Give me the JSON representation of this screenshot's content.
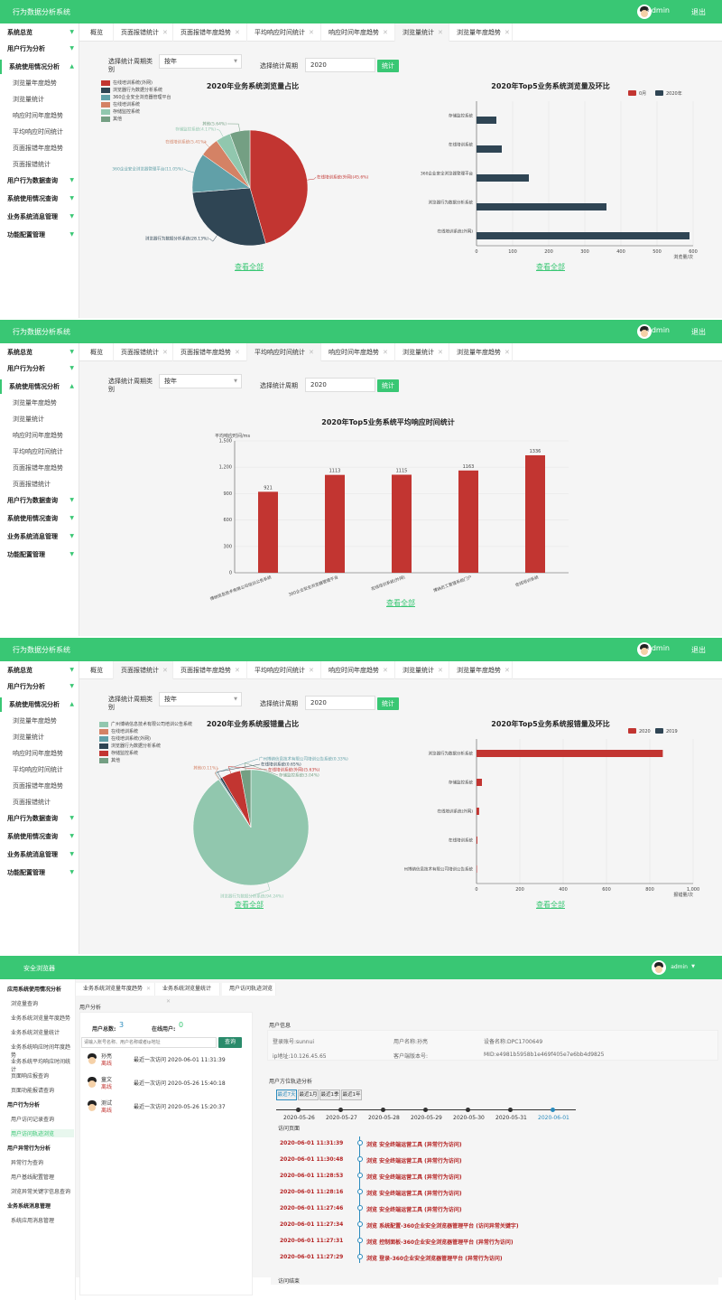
{
  "app_title": "行为数据分析系统",
  "user": "admin",
  "logout": "退出",
  "sidebar": {
    "top": [
      {
        "label": "系统总览"
      },
      {
        "label": "用户行为分析"
      },
      {
        "label": "系统使用情况分析"
      }
    ],
    "subs": [
      "浏览量年度趋势",
      "浏览量统计",
      "响应时间年度趋势",
      "平均响应时间统计",
      "页面报错年度趋势",
      "页面报错统计"
    ],
    "bottom": [
      {
        "label": "用户行为数据查询"
      },
      {
        "label": "系统使用情况查询"
      },
      {
        "label": "业务系统消息管理"
      },
      {
        "label": "功能配置管理"
      }
    ]
  },
  "tabs": [
    "概览",
    "页面报错统计",
    "页面报错年度趋势",
    "平均响应时间统计",
    "响应时间年度趋势",
    "浏览量统计",
    "浏览量年度趋势"
  ],
  "filters": {
    "period_type_label": "选择统计周期类别",
    "period_type_value": "按年",
    "period_label": "选择统计周期",
    "period_value": "2020",
    "submit": "统计"
  },
  "view_all": "查看全部",
  "panel1": {
    "pie_title": "2020年业务系统浏览量占比",
    "bar_title": "2020年Top5业务系统浏览量及环比",
    "pie_legend": [
      "在线培训系统(外网)",
      "浏览器行为数据分析系统",
      "360企业安全浏览器管理平台",
      "在线培训系统",
      "存储监控系统",
      "其他"
    ],
    "pie_colors": [
      "#c23531",
      "#2f4554",
      "#61a0a8",
      "#d48265",
      "#91c7ae",
      "#749f83"
    ],
    "pie_labels": [
      "在线培训系统(外网)(45.6%)",
      "浏览器行为数据分析系统(28.13%)",
      "360企业安全浏览器管理平台(11.05%)",
      "在线培训系统(5.41%)",
      "存储监控系统(4.17%)",
      "其他(5.64%)"
    ],
    "bar_legend": [
      "0月",
      "2020年"
    ],
    "bar_colors": [
      "#c23531",
      "#2f4554"
    ],
    "bar_axis_unit": "浏览量/次"
  },
  "panel2": {
    "title": "2020年Top5业务系统平均响应时间统计",
    "y_unit": "平均响应时间/ms"
  },
  "panel3": {
    "pie_title": "2020年业务系统报错量占比",
    "bar_title": "2020年Top5业务系统报错量及环比",
    "pie_legend": [
      "广州博纳信息技术有限公司培训公告系统",
      "在线培训系统",
      "在线培训系统(外网)",
      "浏览器行为数据分析系统",
      "存储监控系统",
      "其他"
    ],
    "pie_colors": [
      "#91c7ae",
      "#d48265",
      "#61a0a8",
      "#2f4554",
      "#c23531",
      "#749f83"
    ],
    "pie_labels": [
      "浏览器行为数据分析系统(94.24%)",
      "其他(0.11%)",
      "广州博纳信息技术有限公司培训公告系统(0.33%)",
      "在线培训系统(0.65%)",
      "在线培训系统(外网)(5.63%)",
      "存储监控系统(3.04%)"
    ],
    "bar_legend": [
      "2020",
      "2019"
    ],
    "bar_axis_unit": "报错量/次"
  },
  "chart_data": [
    {
      "type": "pie",
      "title": "2020年业务系统浏览量占比",
      "categories": [
        "在线培训系统(外网)",
        "浏览器行为数据分析系统",
        "360企业安全浏览器管理平台",
        "在线培训系统",
        "存储监控系统",
        "其他"
      ],
      "values": [
        45.6,
        28.13,
        11.05,
        5.41,
        4.17,
        5.64
      ]
    },
    {
      "type": "bar",
      "title": "2020年Top5业务系统浏览量及环比",
      "orientation": "horizontal",
      "categories": [
        "存储监控系统",
        "在线培训系统",
        "360企业安全浏览器管理平台",
        "浏览器行为数据分析系统",
        "在线培训系统(外网)"
      ],
      "series": [
        {
          "name": "0月",
          "values": [
            0,
            0,
            0,
            0,
            0
          ]
        },
        {
          "name": "2020年",
          "values": [
            55,
            70,
            145,
            360,
            590
          ]
        }
      ],
      "xlim": [
        0,
        600
      ],
      "xticks": [
        "0",
        "100",
        "200",
        "300",
        "400",
        "500",
        "600"
      ],
      "xlabel": "浏览量/次",
      "legend": "top-right"
    },
    {
      "type": "bar",
      "title": "2020年Top5业务系统平均响应时间统计",
      "categories": [
        "博纳信息技术有限公司培训公告系统",
        "360企业安全浏览器管理平台",
        "在线培训系统(外网)",
        "博纳员工管理系统门户",
        "在线培训系统"
      ],
      "values": [
        921,
        1113,
        1115,
        1163,
        1336
      ],
      "ylim": [
        0,
        1500
      ],
      "yticks": [
        "0",
        "300",
        "600",
        "900",
        "1,200",
        "1,500"
      ],
      "ylabel": "平均响应时间/ms"
    },
    {
      "type": "pie",
      "title": "2020年业务系统报错量占比",
      "categories": [
        "浏览器行为数据分析系统",
        "其他",
        "广州博纳信息技术有限公司培训公告系统",
        "在线培训系统",
        "在线培训系统(外网)",
        "存储监控系统"
      ],
      "values": [
        94.24,
        0.11,
        0.33,
        0.65,
        5.63,
        3.04
      ]
    },
    {
      "type": "bar",
      "title": "2020年Top5业务系统报错量及环比",
      "orientation": "horizontal",
      "categories": [
        "浏览器行为数据分析系统",
        "存储监控系统",
        "在线培训系统(外网)",
        "在线培训系统",
        "广州博纳信息技术有限公司培训公告系统"
      ],
      "series": [
        {
          "name": "2020",
          "values": [
            860,
            25,
            12,
            4,
            2
          ]
        },
        {
          "name": "2019",
          "values": [
            0,
            0,
            0,
            0,
            0
          ]
        }
      ],
      "xlim": [
        0,
        1000
      ],
      "xticks": [
        "0",
        "200",
        "400",
        "600",
        "800",
        "1,000"
      ],
      "xlabel": "报错量/次",
      "legend": "top-right"
    }
  ],
  "panel4": {
    "title": "安全浏览器",
    "user": "admin",
    "sidebar": [
      {
        "group": "应用系统使用情况分析",
        "items": [
          "浏览量查询",
          "业务系统浏览量年度趋势",
          "业务系统浏览量统计",
          "业务系统响应时间年度趋势",
          "业务系统平均响应时间统计",
          "页面响应报查询",
          "页面功能报请查询"
        ]
      },
      {
        "group": "用户行为分析",
        "items": [
          "用户访问记录查询",
          "用户访问轨迹浏览"
        ]
      },
      {
        "group": "用户异常行为分析",
        "items": [
          "异常行为查询",
          "用户基线配置管理",
          "浏览异常关键字信息查询"
        ]
      },
      {
        "group": "业务系统消息管理",
        "items": [
          "系统应用消息管理"
        ]
      }
    ],
    "tabs": [
      "业务系统浏览量年度趋势",
      "业务系统浏览量统计",
      "用户访问轨迹浏览"
    ],
    "section": "用户分析",
    "total_users_label": "用户总数:",
    "total_users": "3",
    "online_label": "在线用户:",
    "online": "0",
    "search_placeholder": "请输入账号名称、用户名称或者ip地址",
    "search_btn": "查询",
    "users": [
      {
        "name": "孙亮",
        "status": "离线",
        "last": "最近一次访问 2020-06-01 11:31:39"
      },
      {
        "name": "童文",
        "status": "离线",
        "last": "最近一次访问 2020-05-26 15:40:18"
      },
      {
        "name": "测试",
        "status": "离线",
        "last": "最近一次访问 2020-05-26 15:20:37"
      }
    ],
    "info_title": "用户信息",
    "info": {
      "account": "登录账号:sunnui",
      "name": "用户名称:孙亮",
      "device": "设备名称:DPC1700649",
      "ip": "ip地址:10.126.45.65",
      "client": "客户端版本号:",
      "mid": "MID:e4981b5958b1e469f405e7e6bb4d9825"
    },
    "track_title": "用户方位轨迹分析",
    "ranges": [
      "最近7天",
      "最近1月",
      "最近1季",
      "最近1年"
    ],
    "dates": [
      "2020-05-26",
      "2020-05-27",
      "2020-05-28",
      "2020-05-29",
      "2020-05-30",
      "2020-05-31",
      "2020-06-01"
    ],
    "visit_title": "访问页面",
    "visits": [
      {
        "time": "2020-06-01 11:31:39",
        "text": "浏览 安全终端运营工具 (异常行为访问)"
      },
      {
        "time": "2020-06-01 11:30:48",
        "text": "浏览 安全终端运营工具 (异常行为访问)"
      },
      {
        "time": "2020-06-01 11:28:53",
        "text": "浏览 安全终端运营工具 (异常行为访问)"
      },
      {
        "time": "2020-06-01 11:28:16",
        "text": "浏览 安全终端运营工具 (异常行为访问)"
      },
      {
        "time": "2020-06-01 11:27:46",
        "text": "浏览 安全终端运营工具 (异常行为访问)"
      },
      {
        "time": "2020-06-01 11:27:34",
        "text": "浏览 系统配置-360企业安全浏览器管理平台 (访问异常关键字)"
      },
      {
        "time": "2020-06-01 11:27:31",
        "text": "浏览 控制面板-360企业安全浏览器管理平台 (异常行为访问)"
      },
      {
        "time": "2020-06-01 11:27:29",
        "text": "浏览 登录-360企业安全浏览器管理平台 (异常行为访问)"
      }
    ],
    "visit_end": "访问结束"
  }
}
